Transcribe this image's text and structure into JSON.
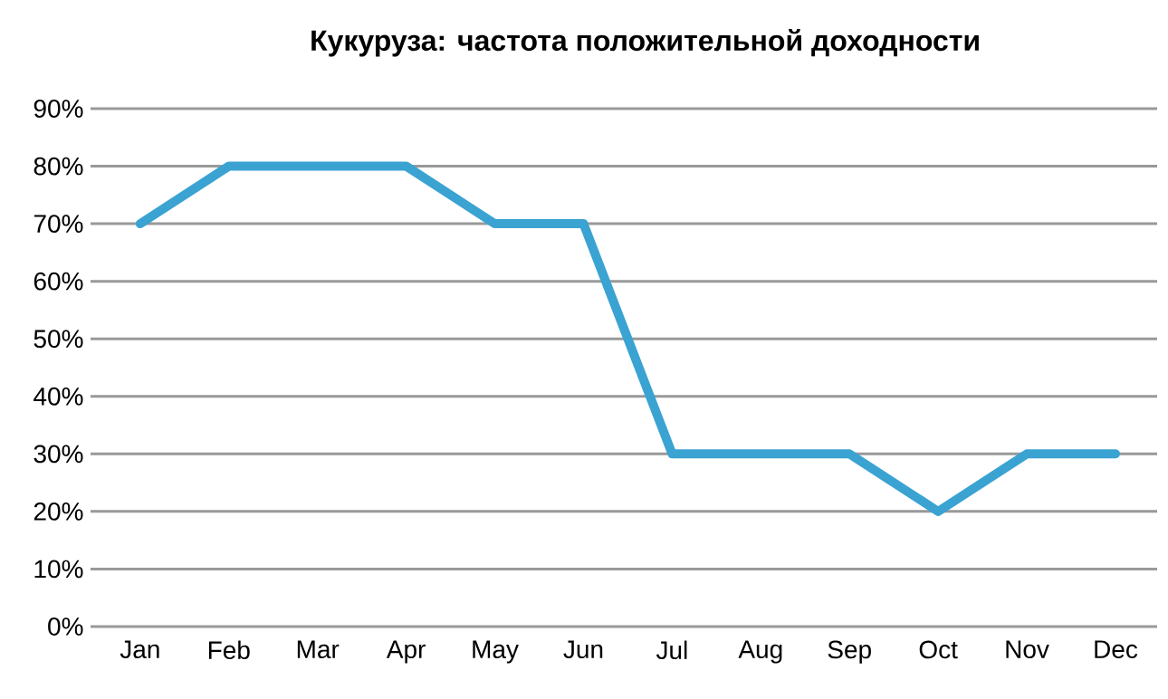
{
  "chart_data": {
    "type": "line",
    "title": "Кукуруза: частота положительной доходности",
    "categories": [
      "Jan",
      "Feb",
      "Mar",
      "Apr",
      "May",
      "Jun",
      "Jul",
      "Aug",
      "Sep",
      "Oct",
      "Nov",
      "Dec"
    ],
    "series": [
      {
        "color": "#3aa3d2",
        "values": [
          70,
          80,
          80,
          80,
          70,
          70,
          30,
          30,
          30,
          20,
          30,
          30
        ]
      }
    ],
    "ylim": [
      0,
      90
    ],
    "yticks": [
      {
        "value": 0,
        "label": "0%"
      },
      {
        "value": 10,
        "label": "10%"
      },
      {
        "value": 20,
        "label": "20%"
      },
      {
        "value": 30,
        "label": "30%"
      },
      {
        "value": 40,
        "label": "40%"
      },
      {
        "value": 50,
        "label": "50%"
      },
      {
        "value": 60,
        "label": "60%"
      },
      {
        "value": 70,
        "label": "70%"
      },
      {
        "value": 80,
        "label": "80%"
      },
      {
        "value": 90,
        "label": "90%"
      }
    ],
    "grid": "y",
    "marker": "none",
    "line_style": "solid"
  }
}
